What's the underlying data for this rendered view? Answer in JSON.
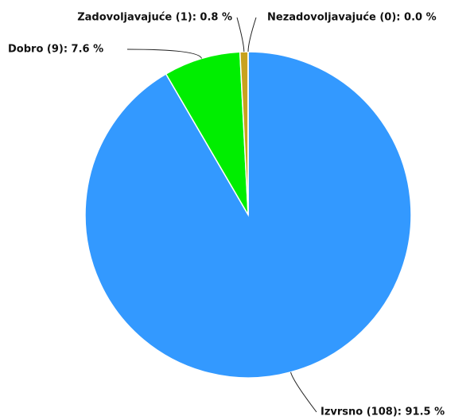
{
  "chart_data": {
    "type": "pie",
    "values": [
      91.5,
      7.6,
      0.8,
      0.0
    ],
    "value_labels": [
      "Izvrsno (108): 91.5 %",
      "Dobro (9): 7.6 %",
      "Zadovoljavajuće (1): 0.8 %",
      "Nezadovoljavajuće (0): 0.0 %"
    ],
    "colors": [
      "#3399ff",
      "#00ee00",
      "#c8a21e",
      "#e03030"
    ]
  }
}
